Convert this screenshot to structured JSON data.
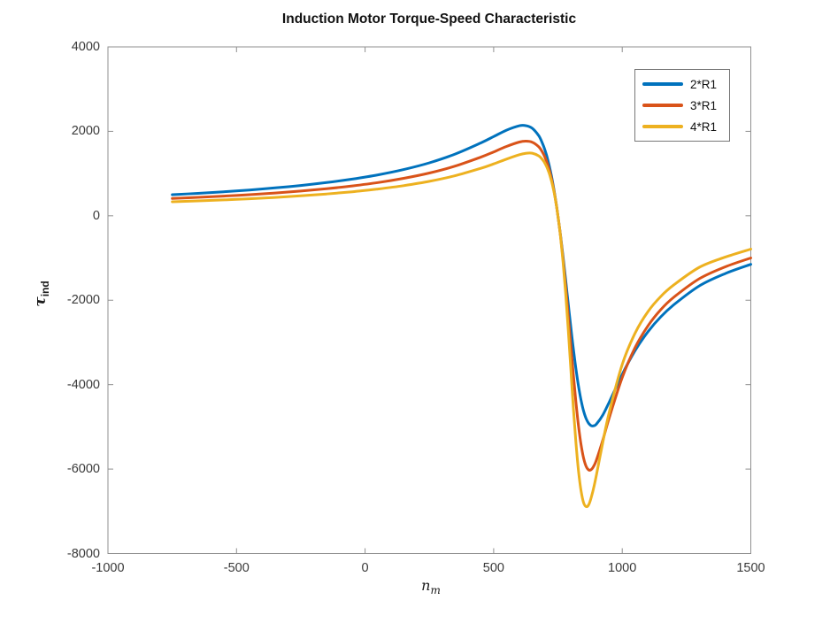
{
  "figure": {
    "background": "#ffffff",
    "axis_color": "#8f8f8f",
    "tick_label_color": "#3a3a3a"
  },
  "axes": {
    "y_label_symbol": "τ",
    "y_label_sub": "ind",
    "x_label_symbol": "n",
    "x_label_sub": "m"
  },
  "chart_data": {
    "type": "line",
    "title": "Induction Motor Torque-Speed Characteristic",
    "xlabel": "n_m",
    "ylabel": "τ_ind",
    "xlim": [
      -1000,
      1500
    ],
    "ylim": [
      -8000,
      4000
    ],
    "x_ticks": [
      -1000,
      -500,
      0,
      500,
      1000,
      1500
    ],
    "y_ticks": [
      -8000,
      -6000,
      -4000,
      -2000,
      0,
      2000,
      4000
    ],
    "grid": false,
    "legend_position": "top-right",
    "x": [
      -750,
      -650,
      -550,
      -450,
      -350,
      -250,
      -150,
      -50,
      50,
      150,
      250,
      350,
      450,
      500,
      550,
      600,
      625,
      650,
      675,
      690,
      700,
      710,
      720,
      730,
      740,
      750,
      760,
      770,
      780,
      790,
      800,
      810,
      820,
      830,
      840,
      850,
      860,
      870,
      880,
      890,
      900,
      925,
      950,
      1000,
      1050,
      1100,
      1150,
      1200,
      1300,
      1400,
      1500
    ],
    "series": [
      {
        "name": "2*R1",
        "color": "#0072BD",
        "values": [
          499,
          532,
          569,
          611,
          660,
          718,
          786,
          869,
          969,
          1095,
          1255,
          1461,
          1725,
          1877,
          2027,
          2132,
          2135,
          2073,
          1899,
          1714,
          1548,
          1340,
          1084,
          778,
          417,
          0,
          -469,
          -981,
          -1525,
          -2083,
          -2634,
          -3155,
          -3629,
          -4038,
          -4372,
          -4629,
          -4810,
          -4921,
          -4973,
          -4973,
          -4932,
          -4713,
          -4406,
          -3756,
          -3193,
          -2746,
          -2393,
          -2111,
          -1660,
          -1370,
          -1150
        ]
      },
      {
        "name": "3*R1",
        "color": "#D95319",
        "values": [
          410,
          436,
          466,
          500,
          540,
          586,
          641,
          707,
          787,
          887,
          1014,
          1177,
          1389,
          1513,
          1642,
          1746,
          1768,
          1743,
          1635,
          1505,
          1379,
          1215,
          1004,
          737,
          405,
          0,
          -483,
          -1044,
          -1677,
          -2362,
          -3073,
          -3773,
          -4421,
          -4982,
          -5427,
          -5747,
          -5940,
          -6021,
          -6008,
          -5920,
          -5780,
          -5302,
          -4772,
          -3830,
          -3123,
          -2607,
          -2223,
          -1932,
          -1490,
          -1210,
          -1000
        ]
      },
      {
        "name": "4*R1",
        "color": "#EDB120",
        "values": [
          331,
          352,
          376,
          404,
          435,
          473,
          517,
          569,
          634,
          714,
          816,
          949,
          1124,
          1229,
          1343,
          1447,
          1481,
          1482,
          1420,
          1330,
          1237,
          1107,
          932,
          699,
          394,
          0,
          -498,
          -1114,
          -1851,
          -2699,
          -3623,
          -4564,
          -5380,
          -6050,
          -6520,
          -6800,
          -6890,
          -6840,
          -6660,
          -6420,
          -6130,
          -5350,
          -4640,
          -3520,
          -2780,
          -2270,
          -1910,
          -1640,
          -1220,
          -980,
          -790
        ]
      }
    ]
  }
}
